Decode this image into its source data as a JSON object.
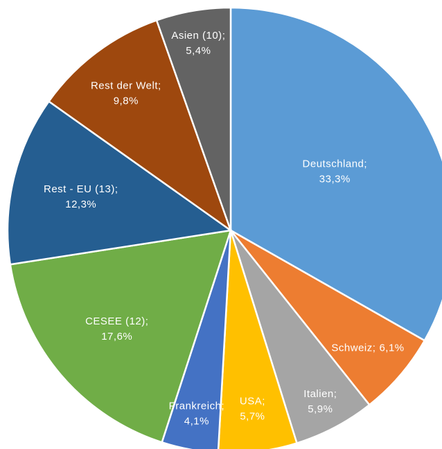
{
  "chart_data": {
    "type": "pie",
    "categories": [
      "Deutschland",
      "Schweiz",
      "Italien",
      "USA",
      "Frankreich",
      "CESEE (12)",
      "Rest - EU (13)",
      "Rest der Welt",
      "Asien (10)"
    ],
    "values": [
      33.3,
      6.1,
      5.9,
      5.7,
      4.1,
      17.6,
      12.3,
      9.8,
      5.4
    ],
    "value_labels": [
      "33,3%",
      "6,1%",
      "5,9%",
      "5,7%",
      "4,1%",
      "17,6%",
      "12,3%",
      "9,8%",
      "5,4%"
    ],
    "label_separator": ";",
    "colors": [
      "#5b9bd5",
      "#ed7d31",
      "#a5a5a5",
      "#ffc000",
      "#4472c4",
      "#70ad47",
      "#255e91",
      "#9e480e",
      "#636363"
    ]
  }
}
